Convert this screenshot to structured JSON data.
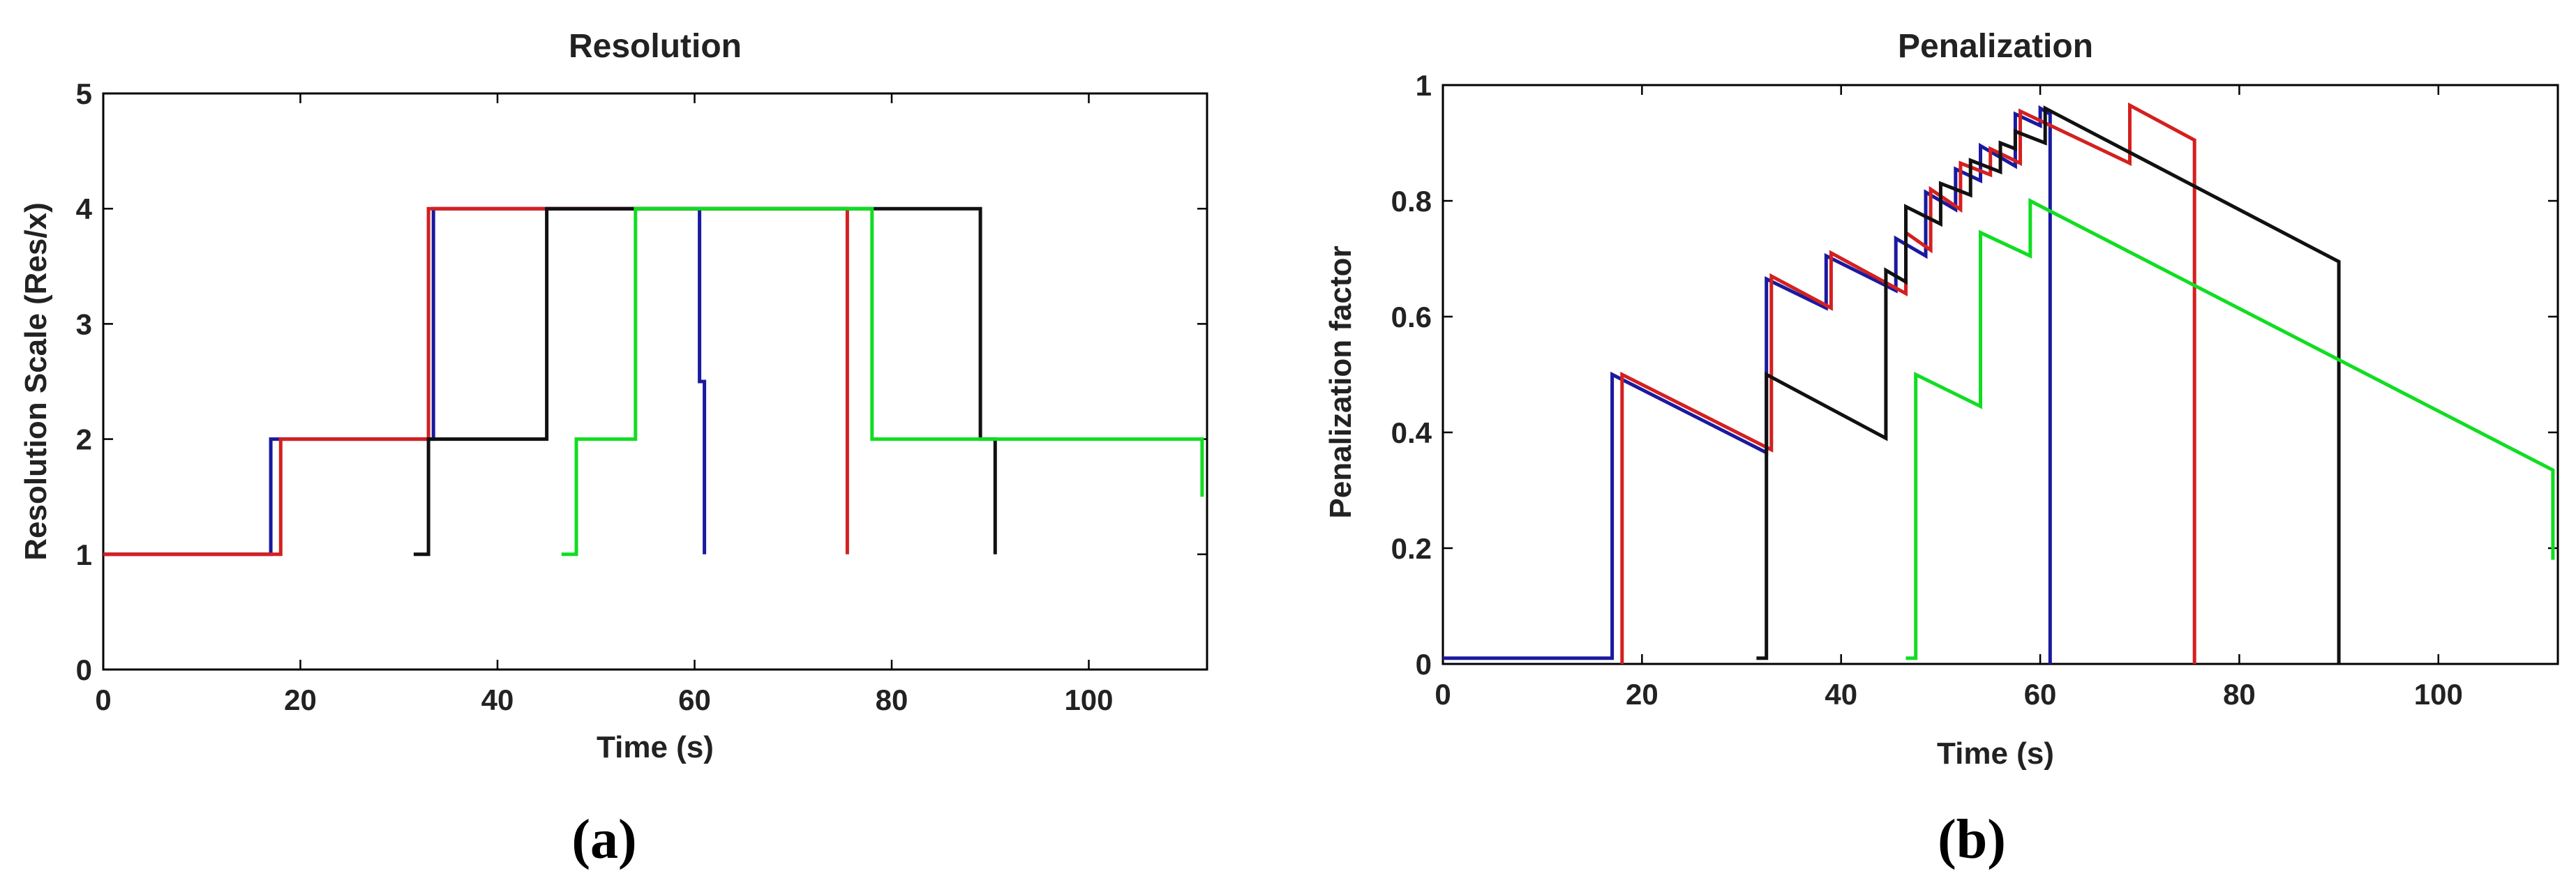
{
  "chart_data": [
    {
      "type": "line",
      "title": "Resolution",
      "xlabel": "Time (s)",
      "ylabel": "Resolution Scale (Res/x)",
      "xlim": [
        0,
        112
      ],
      "ylim": [
        0,
        5
      ],
      "xticks": [
        0,
        20,
        40,
        60,
        80,
        100
      ],
      "yticks": [
        0,
        1,
        2,
        3,
        4,
        5
      ],
      "grid": false,
      "panel_label": "(a)",
      "series": [
        {
          "color": "#1a1a9e",
          "points": [
            [
              0,
              1
            ],
            [
              17,
              1
            ],
            [
              17,
              2
            ],
            [
              33.5,
              2
            ],
            [
              33.5,
              4
            ],
            [
              60.5,
              4
            ],
            [
              60.5,
              2.5
            ],
            [
              61,
              2.5
            ],
            [
              61,
              1
            ]
          ]
        },
        {
          "color": "#d42020",
          "points": [
            [
              0,
              1
            ],
            [
              18,
              1
            ],
            [
              18,
              2
            ],
            [
              33,
              2
            ],
            [
              33,
              4
            ],
            [
              75.5,
              4
            ],
            [
              75.5,
              1
            ]
          ]
        },
        {
          "color": "#111111",
          "points": [
            [
              31.5,
              1
            ],
            [
              33,
              1
            ],
            [
              33,
              2
            ],
            [
              45,
              2
            ],
            [
              45,
              4
            ],
            [
              89,
              4
            ],
            [
              89,
              2
            ],
            [
              90.5,
              2
            ],
            [
              90.5,
              1
            ]
          ]
        },
        {
          "color": "#11dd22",
          "points": [
            [
              46.5,
              1
            ],
            [
              48,
              1
            ],
            [
              48,
              2
            ],
            [
              54,
              2
            ],
            [
              54,
              4
            ],
            [
              78,
              4
            ],
            [
              78,
              2
            ],
            [
              111.5,
              2
            ],
            [
              111.5,
              1.5
            ]
          ]
        }
      ]
    },
    {
      "type": "line",
      "title": "Penalization",
      "xlabel": "Time (s)",
      "ylabel": "Penalization factor",
      "xlim": [
        0,
        112
      ],
      "ylim": [
        0,
        1
      ],
      "xticks": [
        0,
        20,
        40,
        60,
        80,
        100
      ],
      "yticks": [
        0,
        0.2,
        0.4,
        0.6,
        0.8,
        1
      ],
      "grid": false,
      "panel_label": "(b)",
      "series": [
        {
          "color": "#1a1a9e",
          "points": [
            [
              0,
              0.01
            ],
            [
              17,
              0.01
            ],
            [
              17,
              0.5
            ],
            [
              32.5,
              0.365
            ],
            [
              32.5,
              0.665
            ],
            [
              38.5,
              0.615
            ],
            [
              38.5,
              0.705
            ],
            [
              45.5,
              0.645
            ],
            [
              45.5,
              0.735
            ],
            [
              48.5,
              0.705
            ],
            [
              48.5,
              0.815
            ],
            [
              51.5,
              0.785
            ],
            [
              51.5,
              0.855
            ],
            [
              54,
              0.835
            ],
            [
              54,
              0.895
            ],
            [
              57.5,
              0.86
            ],
            [
              57.5,
              0.95
            ],
            [
              60,
              0.93
            ],
            [
              60,
              0.96
            ],
            [
              61,
              0.95
            ],
            [
              61,
              0
            ]
          ]
        },
        {
          "color": "#d42020",
          "points": [
            [
              18,
              0
            ],
            [
              18,
              0.5
            ],
            [
              33,
              0.37
            ],
            [
              33,
              0.67
            ],
            [
              39,
              0.615
            ],
            [
              39,
              0.71
            ],
            [
              46.5,
              0.64
            ],
            [
              46.5,
              0.745
            ],
            [
              49,
              0.715
            ],
            [
              49,
              0.82
            ],
            [
              52,
              0.785
            ],
            [
              52,
              0.865
            ],
            [
              55,
              0.845
            ],
            [
              55,
              0.89
            ],
            [
              58,
              0.865
            ],
            [
              58,
              0.955
            ],
            [
              69,
              0.865
            ],
            [
              69,
              0.965
            ],
            [
              75.5,
              0.905
            ],
            [
              75.5,
              0
            ]
          ]
        },
        {
          "color": "#111111",
          "points": [
            [
              31.5,
              0.01
            ],
            [
              32.5,
              0.01
            ],
            [
              32.5,
              0.5
            ],
            [
              44.5,
              0.39
            ],
            [
              44.5,
              0.68
            ],
            [
              46.5,
              0.66
            ],
            [
              46.5,
              0.79
            ],
            [
              50,
              0.76
            ],
            [
              50,
              0.83
            ],
            [
              53,
              0.81
            ],
            [
              53,
              0.87
            ],
            [
              56,
              0.85
            ],
            [
              56,
              0.9
            ],
            [
              57.5,
              0.89
            ],
            [
              57.5,
              0.92
            ],
            [
              60.5,
              0.9
            ],
            [
              60.5,
              0.96
            ],
            [
              90,
              0.695
            ],
            [
              90,
              0
            ]
          ]
        },
        {
          "color": "#11dd22",
          "points": [
            [
              46.5,
              0.01
            ],
            [
              47.5,
              0.01
            ],
            [
              47.5,
              0.5
            ],
            [
              54,
              0.445
            ],
            [
              54,
              0.745
            ],
            [
              59,
              0.705
            ],
            [
              59,
              0.8
            ],
            [
              111.5,
              0.335
            ],
            [
              111.5,
              0.18
            ]
          ]
        }
      ]
    }
  ]
}
